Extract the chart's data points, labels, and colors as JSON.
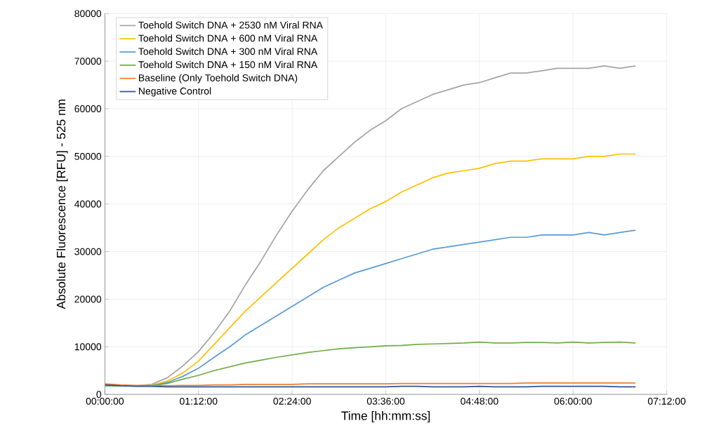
{
  "chart_data": {
    "type": "line",
    "xlabel": "Time [hh:mm:ss]",
    "ylabel": "Absolute Fluorescence [RFU] - 525 nm",
    "x": [
      0,
      0.2,
      0.4,
      0.6,
      0.8,
      1.0,
      1.2,
      1.4,
      1.6,
      1.8,
      2.0,
      2.2,
      2.4,
      2.6,
      2.8,
      3.0,
      3.2,
      3.4,
      3.6,
      3.8,
      4.0,
      4.2,
      4.4,
      4.6,
      4.8,
      5.0,
      5.2,
      5.4,
      5.6,
      5.8,
      6.0,
      6.2,
      6.4,
      6.6,
      6.8
    ],
    "series": [
      {
        "name": "Toehold Switch DNA + 2530 nM Viral RNA",
        "color": "#a5a5a5",
        "values": [
          2000,
          1900,
          1800,
          2100,
          3500,
          6000,
          9000,
          13000,
          17500,
          23000,
          28000,
          33500,
          38500,
          43000,
          47000,
          50000,
          53000,
          55500,
          57500,
          60000,
          61500,
          63000,
          64000,
          65000,
          65500,
          66500,
          67500,
          67500,
          68000,
          68500,
          68500,
          68500,
          69000,
          68500,
          69000
        ]
      },
      {
        "name": "Toehold Switch DNA + 600 nM Viral RNA",
        "color": "#ffc000",
        "values": [
          null,
          null,
          1800,
          1900,
          2800,
          4500,
          7000,
          10500,
          14000,
          17500,
          20500,
          23500,
          26500,
          29500,
          32500,
          35000,
          37000,
          39000,
          40500,
          42500,
          44000,
          45500,
          46500,
          47000,
          47500,
          48500,
          49000,
          49000,
          49500,
          49500,
          49500,
          50000,
          50000,
          50500,
          50500
        ]
      },
      {
        "name": "Toehold Switch DNA + 300 nM Viral RNA",
        "color": "#5b9bd5",
        "values": [
          1800,
          1800,
          1800,
          1800,
          2500,
          3800,
          5500,
          7800,
          10000,
          12500,
          14500,
          16500,
          18500,
          20500,
          22500,
          24000,
          25500,
          26500,
          27500,
          28500,
          29500,
          30500,
          31000,
          31500,
          32000,
          32500,
          33000,
          33000,
          33500,
          33500,
          33500,
          34000,
          33500,
          34000,
          34500
        ]
      },
      {
        "name": "Toehold Switch DNA + 150 nM Viral RNA",
        "color": "#70ad47",
        "values": [
          1800,
          1800,
          1800,
          1800,
          2300,
          3200,
          4000,
          5000,
          5800,
          6600,
          7200,
          7800,
          8300,
          8800,
          9200,
          9600,
          9800,
          10000,
          10200,
          10300,
          10500,
          10600,
          10700,
          10800,
          11000,
          10800,
          10800,
          10900,
          10900,
          10800,
          11000,
          10800,
          10900,
          11000,
          10800
        ]
      },
      {
        "name": "Baseline (Only Toehold Switch DNA)",
        "color": "#ed7d31",
        "values": [
          2200,
          2000,
          1900,
          1800,
          1800,
          1900,
          1900,
          2000,
          2000,
          2100,
          2100,
          2100,
          2100,
          2200,
          2200,
          2200,
          2200,
          2200,
          2200,
          2300,
          2300,
          2300,
          2300,
          2300,
          2300,
          2300,
          2300,
          2400,
          2400,
          2400,
          2400,
          2400,
          2400,
          2400,
          2400
        ]
      },
      {
        "name": "Negative Control",
        "color": "#2f5597",
        "values": [
          2000,
          1800,
          1700,
          1700,
          1600,
          1600,
          1600,
          1600,
          1600,
          1600,
          1600,
          1600,
          1600,
          1600,
          1600,
          1600,
          1600,
          1600,
          1600,
          1700,
          1700,
          1600,
          1600,
          1600,
          1700,
          1600,
          1600,
          1600,
          1700,
          1700,
          1700,
          1700,
          1700,
          1600,
          1600
        ]
      }
    ],
    "xlim": [
      0,
      7.2
    ],
    "xticks": [
      {
        "value": 0,
        "label": "00:00:00"
      },
      {
        "value": 1.2,
        "label": "01:12:00"
      },
      {
        "value": 2.4,
        "label": "02:24:00"
      },
      {
        "value": 3.6,
        "label": "03:36:00"
      },
      {
        "value": 4.8,
        "label": "04:48:00"
      },
      {
        "value": 6.0,
        "label": "06:00:00"
      },
      {
        "value": 7.2,
        "label": "07:12:00"
      }
    ],
    "ylim": [
      0,
      80000
    ],
    "yticks": [
      0,
      10000,
      20000,
      30000,
      40000,
      50000,
      60000,
      70000,
      80000
    ],
    "grid": true,
    "legend": "top left",
    "marker": "none",
    "line_style": "solid"
  }
}
